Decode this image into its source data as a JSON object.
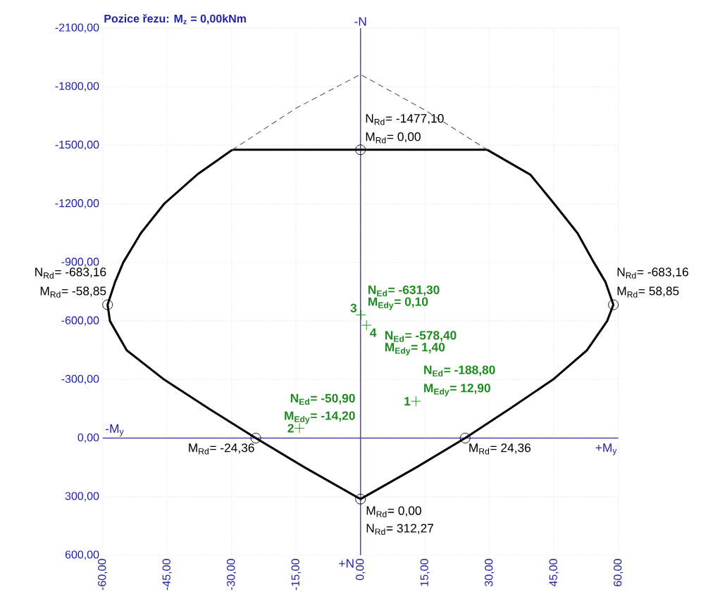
{
  "chart_data": {
    "type": "line",
    "title": "Pozice řezu: M$_{z}$ = 0,00kNm",
    "xlim": [
      -60,
      60
    ],
    "ylim": [
      600,
      -2100
    ],
    "xticks": [
      {
        "value": -60,
        "label": "-60,00"
      },
      {
        "value": -45,
        "label": "-45,00"
      },
      {
        "value": -30,
        "label": "-30,00"
      },
      {
        "value": -15,
        "label": "-15,00"
      },
      {
        "value": 0,
        "label": "0,00"
      },
      {
        "value": 15,
        "label": "15,00"
      },
      {
        "value": 30,
        "label": "30,00"
      },
      {
        "value": 45,
        "label": "45,00"
      },
      {
        "value": 60,
        "label": "60,00"
      }
    ],
    "yticks": [
      {
        "value": -2100,
        "label": "-2100,00"
      },
      {
        "value": -1800,
        "label": "-1800,00"
      },
      {
        "value": -1500,
        "label": "-1500,00"
      },
      {
        "value": -1200,
        "label": "-1200,00"
      },
      {
        "value": -900,
        "label": "-900,00"
      },
      {
        "value": -600,
        "label": "-600,00"
      },
      {
        "value": -300,
        "label": "-300,00"
      },
      {
        "value": 0,
        "label": "0,00"
      },
      {
        "value": 300,
        "label": "300,00"
      },
      {
        "value": 600,
        "label": "600,00"
      }
    ],
    "grid": true,
    "series": [
      {
        "color": "#000000",
        "line_style": "solid",
        "x": [
          -29.8,
          -38,
          -45.7,
          -51.1,
          -55.2,
          -57.1,
          -58.85,
          -58.3,
          -54.4,
          -45.7,
          -35.2,
          -24.36,
          -13,
          0,
          13,
          24.36,
          34.7,
          44.8,
          52.7,
          57.4,
          58.85,
          57,
          54.3,
          50.5,
          45.1,
          39.5,
          29.5
        ],
        "values": [
          -1477.1,
          -1350,
          -1200,
          -1050,
          -900,
          -800,
          -683.16,
          -600,
          -450,
          -300,
          -150,
          0,
          150,
          312.27,
          150,
          0,
          -150,
          -300,
          -450,
          -600,
          -683.16,
          -800,
          -900,
          -1050,
          -1200,
          -1350,
          -1477.1
        ]
      },
      {
        "color": "#000000",
        "line_style": "solid",
        "x": [
          -29.8,
          29.5
        ],
        "values": [
          -1477.1,
          -1477.1
        ]
      },
      {
        "color": "#555555",
        "line_style": "dashed",
        "x": [
          -29.8,
          -15,
          0,
          15,
          29.5
        ],
        "values": [
          -1477.1,
          -1690,
          -1863,
          -1680,
          -1477.1
        ]
      },
      {
        "type": "scatter",
        "color": "#000000",
        "marker": "circle",
        "x": [
          0,
          -58.85,
          58.85,
          -24.36,
          24.36,
          0
        ],
        "values": [
          -1477.1,
          -683.16,
          -683.16,
          0,
          0,
          312.27
        ]
      },
      {
        "type": "scatter",
        "color": "#1f8a1f",
        "marker": "cross",
        "x": [
          12.9,
          -14.2,
          0.1,
          1.4
        ],
        "values": [
          -188.8,
          -50.9,
          -631.3,
          -578.4
        ]
      }
    ],
    "annotations": [
      {
        "text": "N$_{Rd}$= -1477,10",
        "x": 0,
        "y": -1477.1
      },
      {
        "text": "M$_{Rd}$= 0,00",
        "x": 0,
        "y": -1477.1
      },
      {
        "text": "N$_{Rd}$= -683,16",
        "x": -58.85,
        "y": -683.16
      },
      {
        "text": "M$_{Rd}$= -58,85",
        "x": -58.85,
        "y": -683.16
      },
      {
        "text": "N$_{Rd}$= -683,16",
        "x": 58.85,
        "y": -683.16
      },
      {
        "text": "M$_{Rd}$= 58,85",
        "x": 58.85,
        "y": -683.16
      },
      {
        "text": "M$_{Rd}$= -24,36",
        "x": -24.36,
        "y": 0
      },
      {
        "text": "M$_{Rd}$= 24,36",
        "x": 24.36,
        "y": 0
      },
      {
        "text": "M$_{Rd}$= 0,00",
        "x": 0,
        "y": 312.27
      },
      {
        "text": "N$_{Rd}$= 312,27",
        "x": 0,
        "y": 312.27
      },
      {
        "text": "N$_{Ed}$= -188,80",
        "x": 12.9,
        "y": -188.8
      },
      {
        "text": "M$_{Edy}$= 12,90",
        "x": 12.9,
        "y": -188.8
      },
      {
        "text": "N$_{Ed}$= -50,90",
        "x": -14.2,
        "y": -50.9
      },
      {
        "text": "M$_{Edy}$= -14,20",
        "x": -14.2,
        "y": -50.9
      },
      {
        "text": "N$_{Ed}$= -631,30",
        "x": 0.1,
        "y": -631.3
      },
      {
        "text": "M$_{Edy}$= 0,10",
        "x": 0.1,
        "y": -631.3
      },
      {
        "text": "N$_{Ed}$= -578,40",
        "x": 1.4,
        "y": -578.4
      },
      {
        "text": "M$_{Edy}$= 1,40",
        "x": 1.4,
        "y": -578.4
      },
      {
        "text": "1",
        "x": 12.9,
        "y": -188.8
      },
      {
        "text": "2",
        "x": -14.2,
        "y": -50.9
      },
      {
        "text": "3",
        "x": 0.1,
        "y": -631.3
      },
      {
        "text": "4",
        "x": 1.4,
        "y": -578.4
      },
      "-N",
      "+N",
      "-M$_{y}$",
      "+M$_{y}$"
    ]
  }
}
